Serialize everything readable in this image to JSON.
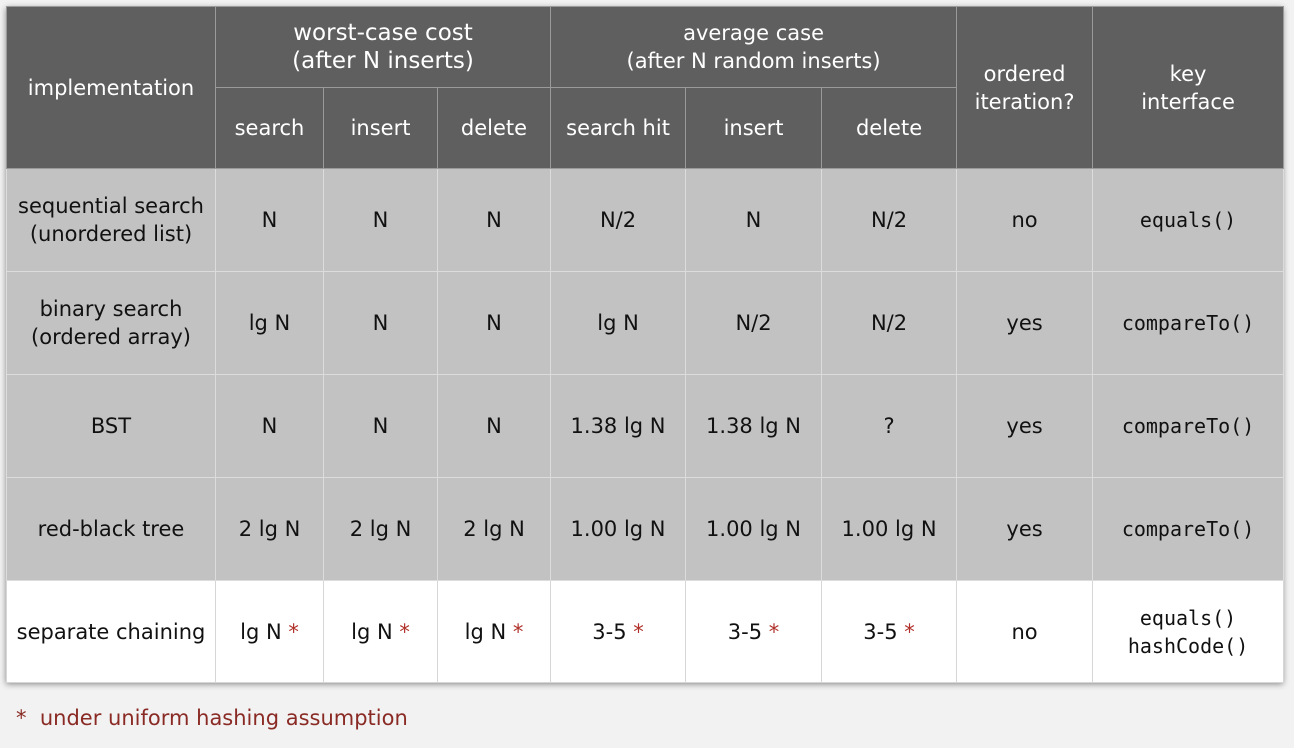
{
  "header": {
    "implementation": "implementation",
    "worst_case": {
      "line1": "worst-case cost",
      "line2": "(after N inserts)"
    },
    "average_case": {
      "line1": "average case",
      "line2": "(after N random inserts)"
    },
    "ordered": {
      "line1": "ordered",
      "line2": "iteration?"
    },
    "key_interface": {
      "line1": "key",
      "line2": "interface"
    },
    "sub": [
      "search",
      "insert",
      "delete",
      "search hit",
      "insert",
      "delete"
    ]
  },
  "rows": [
    {
      "name": [
        "sequential search",
        "(unordered list)"
      ],
      "worst": [
        "N",
        "N",
        "N"
      ],
      "avg": [
        "N/2",
        "N",
        "N/2"
      ],
      "ordered": "no",
      "key": [
        "equals()"
      ]
    },
    {
      "name": [
        "binary search",
        "(ordered array)"
      ],
      "worst": [
        "lg N",
        "N",
        "N"
      ],
      "avg": [
        "lg N",
        "N/2",
        "N/2"
      ],
      "ordered": "yes",
      "key": [
        "compareTo()"
      ]
    },
    {
      "name": [
        "BST"
      ],
      "worst": [
        "N",
        "N",
        "N"
      ],
      "avg": [
        "1.38 lg N",
        "1.38 lg N",
        "?"
      ],
      "ordered": "yes",
      "key": [
        "compareTo()"
      ]
    },
    {
      "name": [
        "red-black tree"
      ],
      "worst": [
        "2 lg N",
        "2 lg N",
        "2 lg N"
      ],
      "avg": [
        "1.00 lg N",
        "1.00 lg N",
        "1.00 lg N"
      ],
      "ordered": "yes",
      "key": [
        "compareTo()"
      ]
    },
    {
      "name": [
        "separate chaining"
      ],
      "worst": [
        "lg N",
        "lg N",
        "lg N"
      ],
      "avg": [
        "3-5",
        "3-5",
        "3-5"
      ],
      "star": "*",
      "ordered": "no",
      "key": [
        "equals()",
        "hashCode()"
      ]
    }
  ],
  "footnote": {
    "marker": "*",
    "text": "under uniform hashing assumption"
  },
  "colors": {
    "header": "#5f5f5f",
    "shaded": "#c2c2c2",
    "plain": "#ffffff",
    "star": "#b0302a"
  }
}
